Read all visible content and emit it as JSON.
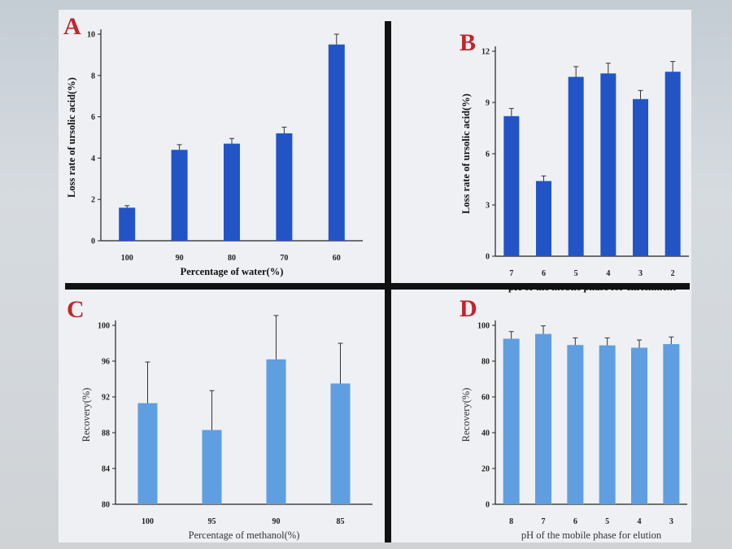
{
  "chart_data": [
    {
      "panel": "A",
      "type": "bar",
      "xlabel": "Percentage of water(%)",
      "ylabel": "Loss rate of ursolic acid(%)",
      "categories": [
        "100",
        "90",
        "80",
        "70",
        "60"
      ],
      "values": [
        1.6,
        4.4,
        4.7,
        5.2,
        9.5
      ],
      "errors": [
        0.1,
        0.25,
        0.25,
        0.3,
        0.5
      ],
      "ylim": [
        0,
        10
      ],
      "yticks": [
        "0",
        "2",
        "4",
        "6",
        "8",
        "10"
      ],
      "color": "#2254c6"
    },
    {
      "panel": "B",
      "type": "bar",
      "xlabel": "pH of  the mobile phase for enrichment",
      "ylabel": "Loss rate of ursolic acid(%)",
      "categories": [
        "7",
        "6",
        "5",
        "4",
        "3",
        "2"
      ],
      "values": [
        8.2,
        4.4,
        10.5,
        10.7,
        9.2,
        10.8
      ],
      "errors": [
        0.45,
        0.3,
        0.6,
        0.6,
        0.5,
        0.6
      ],
      "ylim": [
        0,
        12
      ],
      "yticks": [
        "0",
        "3",
        "6",
        "9",
        "12"
      ],
      "color": "#2254c6"
    },
    {
      "panel": "C",
      "type": "bar",
      "xlabel": "Percentage of methanol(%)",
      "ylabel": "Recovery(%)",
      "categories": [
        "100",
        "95",
        "90",
        "85"
      ],
      "values": [
        91.3,
        88.3,
        96.2,
        93.5
      ],
      "errors": [
        4.6,
        4.4,
        4.9,
        4.5
      ],
      "ylim": [
        80,
        100
      ],
      "yticks": [
        "80",
        "84",
        "88",
        "92",
        "96",
        "100"
      ],
      "color": "#5f9ee0"
    },
    {
      "panel": "D",
      "type": "bar",
      "xlabel": "pH of  the mobile phase for elution",
      "ylabel": "Recovery(%)",
      "categories": [
        "8",
        "7",
        "6",
        "5",
        "4",
        "3"
      ],
      "values": [
        92.5,
        95.2,
        89.0,
        88.8,
        87.5,
        89.5
      ],
      "errors": [
        4.0,
        4.5,
        4.0,
        4.2,
        4.3,
        4.0
      ],
      "ylim": [
        0,
        100
      ],
      "yticks": [
        "0",
        "20",
        "40",
        "60",
        "80",
        "100"
      ],
      "color": "#5f9ee0"
    }
  ]
}
